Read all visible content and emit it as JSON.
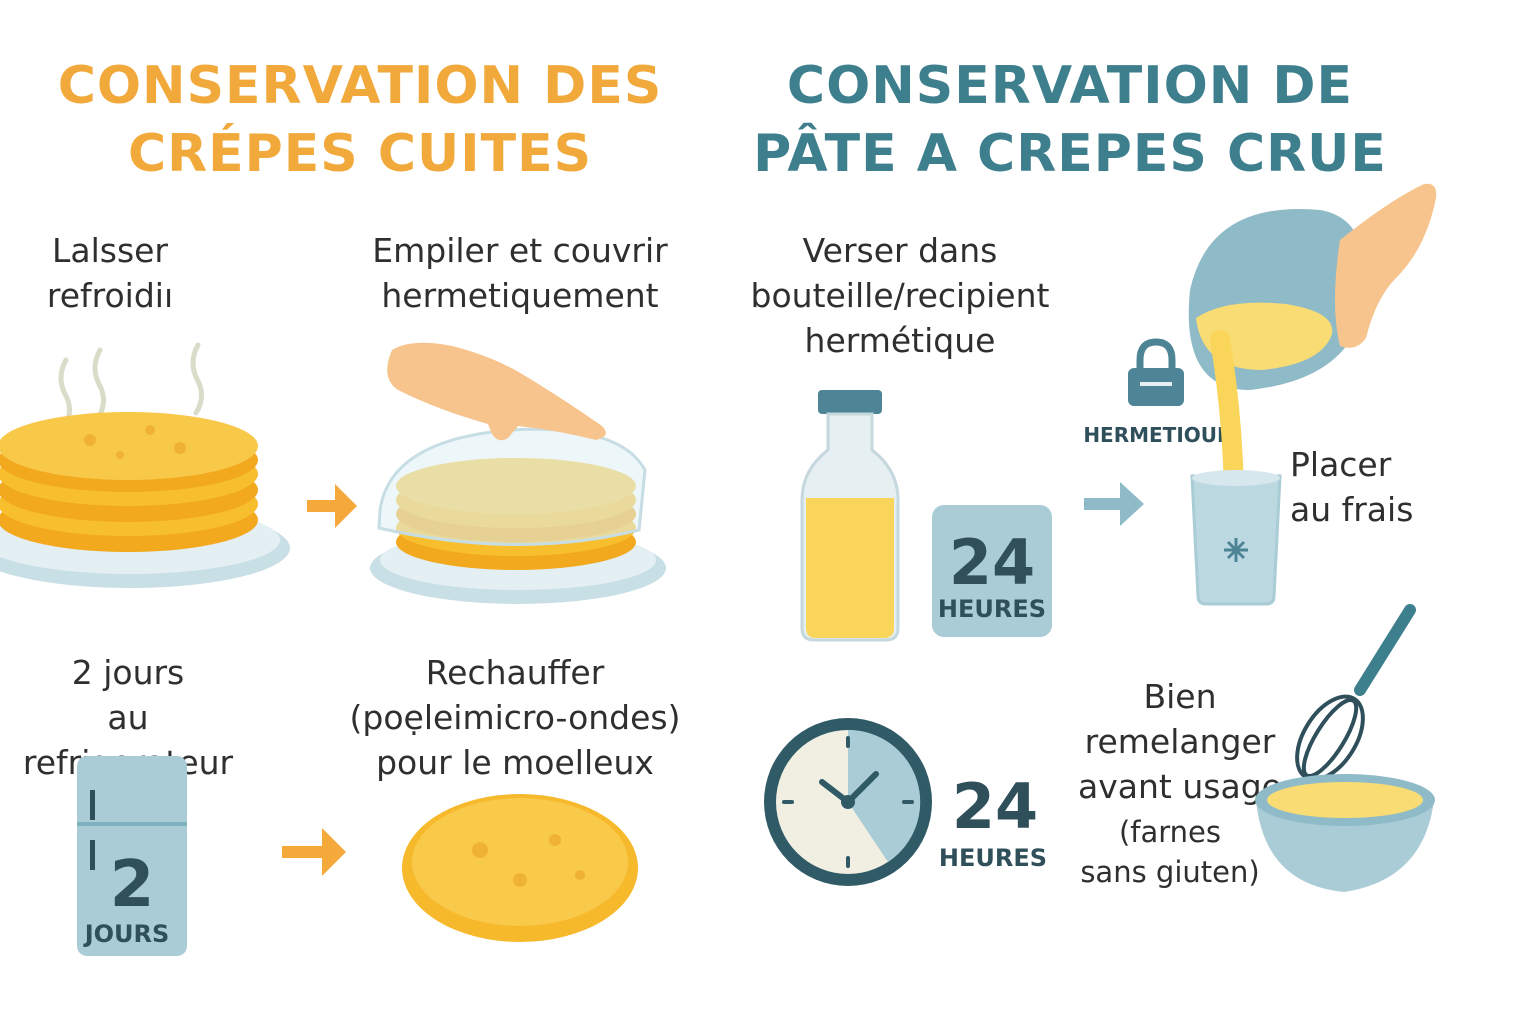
{
  "cooked": {
    "title_line1": "CONSERVATION DES",
    "title_line2": "CRÉPES CUITES",
    "step_cool": {
      "line1": "Lalsser",
      "line2": "refroidiı"
    },
    "step_stack": {
      "line1": "Empiler et couvrir",
      "line2": "hermetiquement"
    },
    "step_fridge": {
      "line1": "2  jours",
      "line2": "au refrigerateur",
      "badge_number": "2",
      "badge_unit": "JOURS"
    },
    "step_reheat": {
      "line1": "Rechauffer",
      "line2": "(poẹleimicro-ondes)",
      "line3": "pour le moelleux"
    }
  },
  "raw": {
    "title_line1": "CONSERVATION DE",
    "title_line2": "PÂTE A CREPES CRUE",
    "step_bottle": {
      "line1": "Verser dans",
      "line2": "bouteille/recipient",
      "line3": "hermétique",
      "badge_number": "24",
      "badge_unit": "HEURES"
    },
    "lock_label": "HERMETIOUE",
    "step_fridge": {
      "line1": "Placer",
      "line2": "au frais"
    },
    "clock": {
      "number": "24",
      "unit": "HEURES"
    },
    "step_mix": {
      "line1": "Bien",
      "line2": "remelanger",
      "line3": "avant usage",
      "line4": "(farnes",
      "line5": "sans giuten)"
    }
  },
  "colors": {
    "orange": "#f2a93b",
    "teal": "#3e7f8e",
    "crepe": "#f6b92b",
    "light_blue": "#a9ccd6",
    "batter": "#f9dc73"
  },
  "icons": [
    "steam-icon",
    "crepe-stack-icon",
    "hand-icon",
    "plastic-wrap-icon",
    "arrow-right-icon",
    "fridge-icon",
    "crepe-icon",
    "bottle-icon",
    "lock-icon",
    "bowl-icon",
    "glass-icon",
    "clock-icon",
    "whisk-icon"
  ]
}
